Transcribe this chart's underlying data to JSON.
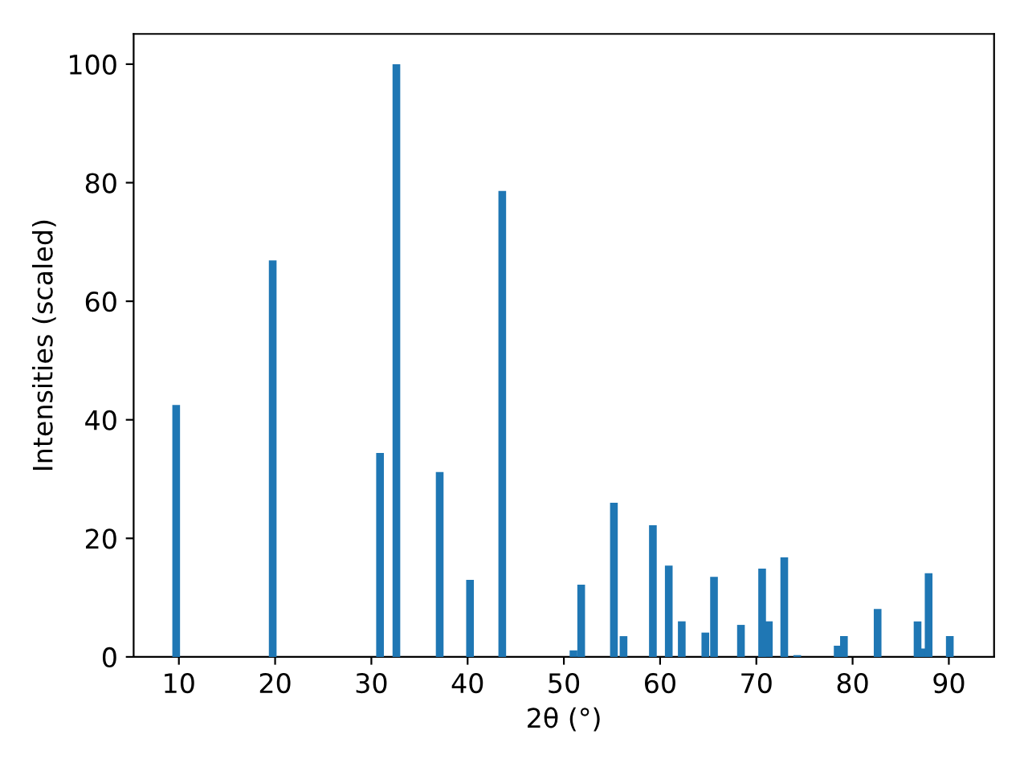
{
  "chart_data": {
    "type": "bar",
    "xlabel": "2θ (°)",
    "ylabel": "Intensities (scaled)",
    "x": [
      9.72,
      19.75,
      30.9,
      32.6,
      37.1,
      40.25,
      43.6,
      51.0,
      51.8,
      55.2,
      56.2,
      59.25,
      60.9,
      62.25,
      64.7,
      65.6,
      68.4,
      70.6,
      71.3,
      72.9,
      74.25,
      78.45,
      79.1,
      82.6,
      86.75,
      87.3,
      87.9,
      90.1
    ],
    "series": [
      {
        "color": "#1f77b4",
        "values": [
          42.5,
          66.9,
          34.4,
          100,
          31.2,
          13.0,
          78.6,
          1.1,
          12.2,
          26.0,
          3.5,
          22.2,
          15.4,
          6.0,
          4.1,
          13.5,
          5.4,
          14.9,
          6.0,
          16.8,
          0.3,
          1.9,
          3.5,
          8.1,
          6.0,
          1.4,
          14.1,
          3.5
        ]
      }
    ],
    "xlim": [
      5.3,
      94.7
    ],
    "ylim": [
      0,
      105.1
    ],
    "xticks": [
      10,
      20,
      30,
      40,
      50,
      60,
      70,
      80,
      90
    ],
    "yticks": [
      0,
      20,
      40,
      60,
      80,
      100
    ],
    "grid": false,
    "legend": false
  }
}
